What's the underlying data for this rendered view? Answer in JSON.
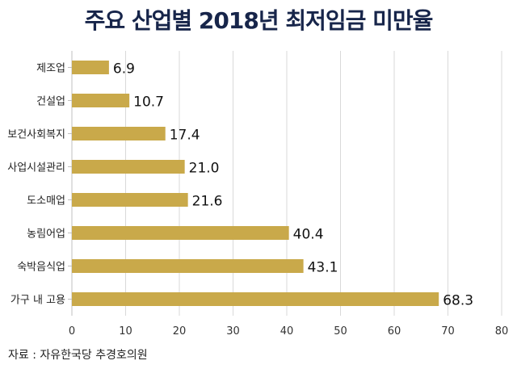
{
  "chart_data": {
    "type": "bar",
    "orientation": "horizontal",
    "title": "주요 산업별 2018년 최저임금 미만율",
    "categories": [
      "제조업",
      "건설업",
      "보건사회복지",
      "사업시설관리",
      "도소매업",
      "농림어업",
      "숙박음식업",
      "가구 내 고용"
    ],
    "values": [
      6.9,
      10.7,
      17.4,
      21.0,
      21.6,
      40.4,
      43.1,
      68.3
    ],
    "value_labels": [
      "6.9",
      "10.7",
      "17.4",
      "21.0",
      "21.6",
      "40.4",
      "43.1",
      "68.3"
    ],
    "xlim": [
      0,
      80
    ],
    "xticks": [
      0,
      10,
      20,
      30,
      40,
      50,
      60,
      70,
      80
    ],
    "grid": true,
    "bar_color": "#c9a94a",
    "title_color": "#17254a"
  },
  "source": "자료 : 자유한국당 추경호의원"
}
